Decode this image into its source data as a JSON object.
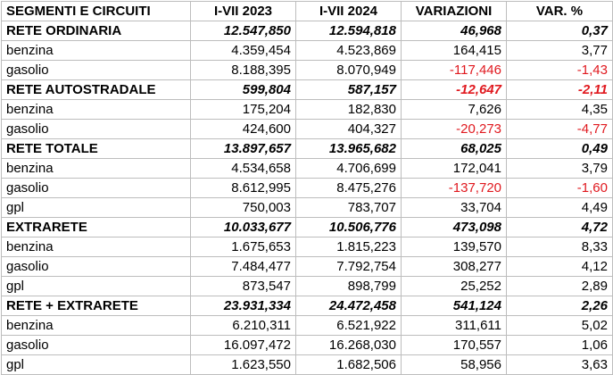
{
  "table": {
    "headers": [
      "SEGMENTI E CIRCUITI",
      "I-VII 2023",
      "I-VII 2024",
      "VARIAZIONI",
      "VAR. %"
    ],
    "negative_color": "#e0191f",
    "rows": [
      {
        "type": "section",
        "cells": [
          "RETE ORDINARIA",
          "12.547,850",
          "12.594,818",
          "46,968",
          "0,37"
        ],
        "neg": [
          false,
          false
        ]
      },
      {
        "type": "item",
        "cells": [
          "benzina",
          "4.359,454",
          "4.523,869",
          "164,415",
          "3,77"
        ],
        "neg": [
          false,
          false
        ]
      },
      {
        "type": "item",
        "cells": [
          "gasolio",
          "8.188,395",
          "8.070,949",
          "-117,446",
          "-1,43"
        ],
        "neg": [
          true,
          true
        ]
      },
      {
        "type": "section",
        "cells": [
          "RETE AUTOSTRADALE",
          "599,804",
          "587,157",
          "-12,647",
          "-2,11"
        ],
        "neg": [
          true,
          true
        ]
      },
      {
        "type": "item",
        "cells": [
          "benzina",
          "175,204",
          "182,830",
          "7,626",
          "4,35"
        ],
        "neg": [
          false,
          false
        ]
      },
      {
        "type": "item",
        "cells": [
          "gasolio",
          "424,600",
          "404,327",
          "-20,273",
          "-4,77"
        ],
        "neg": [
          true,
          true
        ]
      },
      {
        "type": "section",
        "cells": [
          "RETE TOTALE",
          "13.897,657",
          "13.965,682",
          "68,025",
          "0,49"
        ],
        "neg": [
          false,
          false
        ]
      },
      {
        "type": "item",
        "cells": [
          "benzina",
          "4.534,658",
          "4.706,699",
          "172,041",
          "3,79"
        ],
        "neg": [
          false,
          false
        ]
      },
      {
        "type": "item",
        "cells": [
          "gasolio",
          "8.612,995",
          "8.475,276",
          "-137,720",
          "-1,60"
        ],
        "neg": [
          true,
          true
        ]
      },
      {
        "type": "item",
        "cells": [
          "gpl",
          "750,003",
          "783,707",
          "33,704",
          "4,49"
        ],
        "neg": [
          false,
          false
        ]
      },
      {
        "type": "section",
        "cells": [
          "EXTRARETE",
          "10.033,677",
          "10.506,776",
          "473,098",
          "4,72"
        ],
        "neg": [
          false,
          false
        ]
      },
      {
        "type": "item",
        "cells": [
          "benzina",
          "1.675,653",
          "1.815,223",
          "139,570",
          "8,33"
        ],
        "neg": [
          false,
          false
        ]
      },
      {
        "type": "item",
        "cells": [
          "gasolio",
          "7.484,477",
          "7.792,754",
          "308,277",
          "4,12"
        ],
        "neg": [
          false,
          false
        ]
      },
      {
        "type": "item",
        "cells": [
          "gpl",
          "873,547",
          "898,799",
          "25,252",
          "2,89"
        ],
        "neg": [
          false,
          false
        ]
      },
      {
        "type": "section",
        "cells": [
          "RETE + EXTRARETE",
          "23.931,334",
          "24.472,458",
          "541,124",
          "2,26"
        ],
        "neg": [
          false,
          false
        ]
      },
      {
        "type": "item",
        "cells": [
          "benzina",
          "6.210,311",
          "6.521,922",
          "311,611",
          "5,02"
        ],
        "neg": [
          false,
          false
        ]
      },
      {
        "type": "item",
        "cells": [
          "gasolio",
          "16.097,472",
          "16.268,030",
          "170,557",
          "1,06"
        ],
        "neg": [
          false,
          false
        ]
      },
      {
        "type": "item",
        "cells": [
          "gpl",
          "1.623,550",
          "1.682,506",
          "58,956",
          "3,63"
        ],
        "neg": [
          false,
          false
        ]
      }
    ]
  }
}
